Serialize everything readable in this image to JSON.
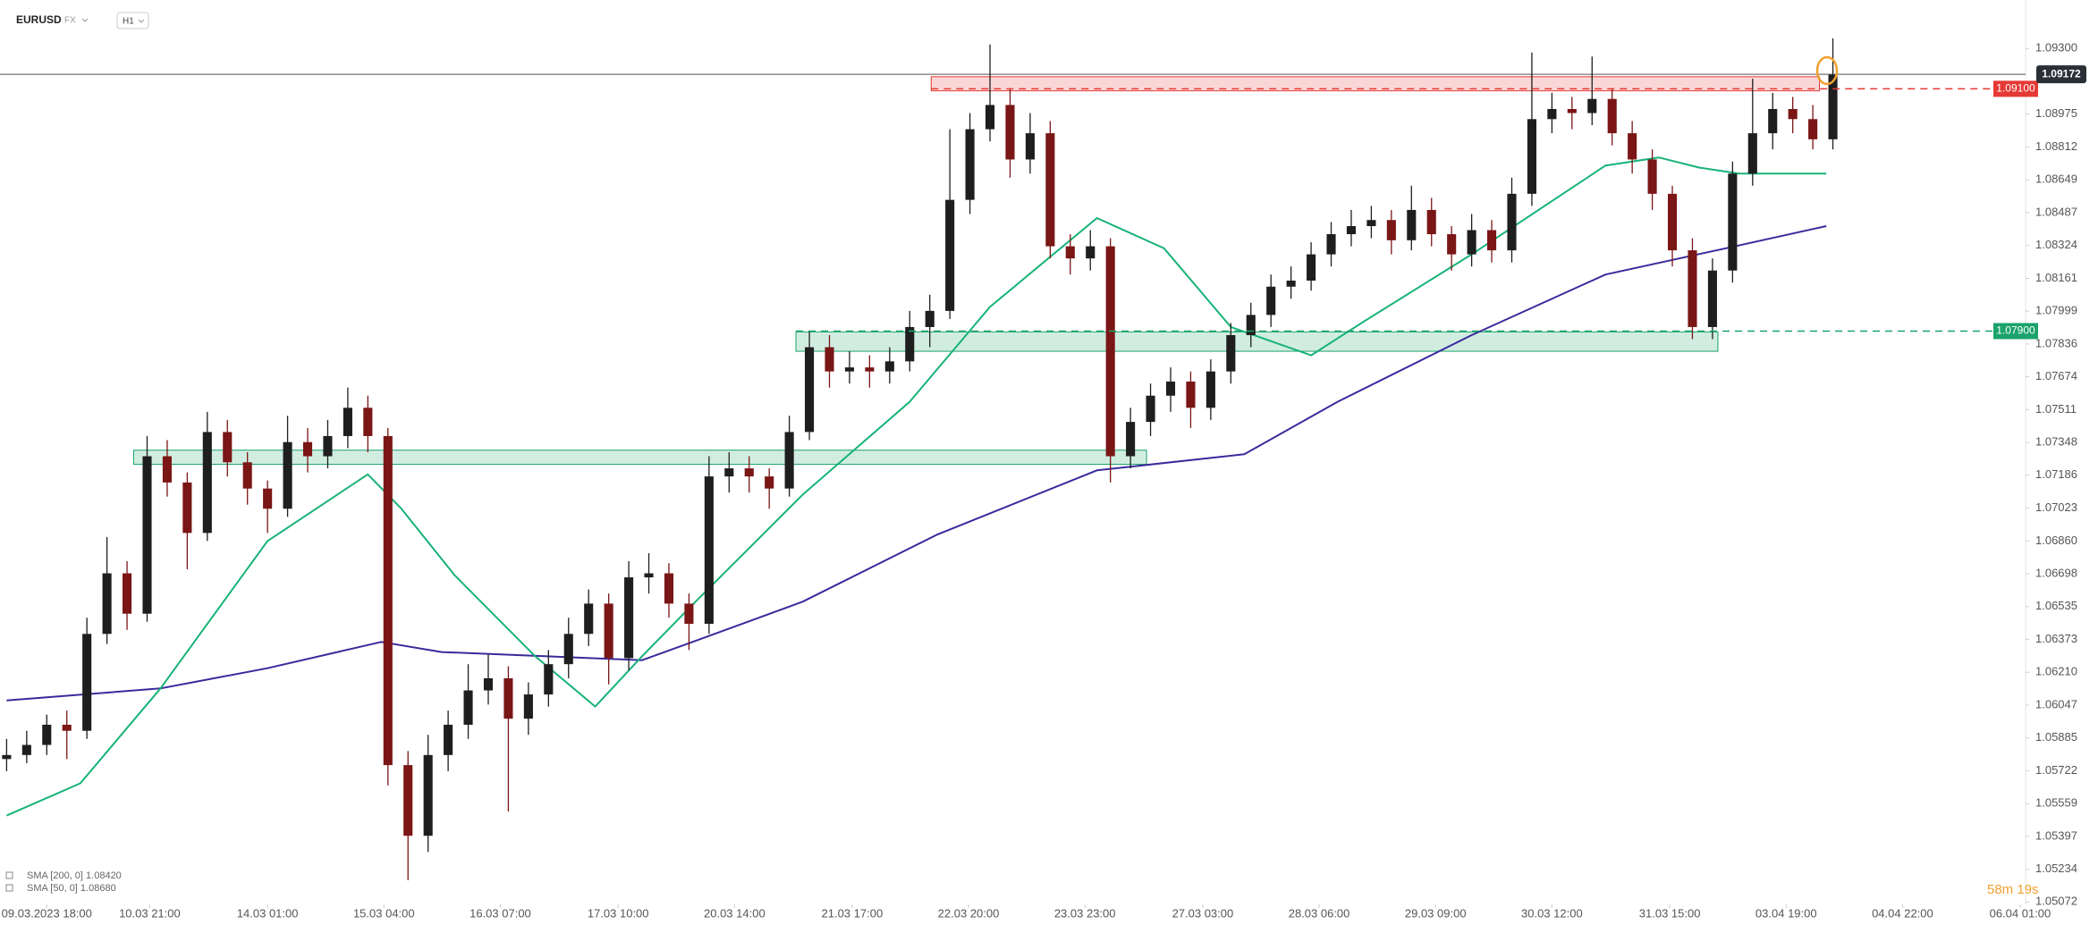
{
  "chart_data": {
    "type": "candlestick",
    "symbol": "EURUSD",
    "market": "FX",
    "timeframe": "H1",
    "countdown": "58m 19s",
    "up_color": "#1e1e1e",
    "down_color": "#7a1616",
    "xlim": [
      -0.33,
      100.6
    ],
    "ylim": [
      1.0506,
      1.0954
    ],
    "yticks": [
      {
        "value": 1.093,
        "label": "1.09300"
      },
      1.08975,
      1.08812,
      1.08649,
      1.08487,
      1.08324,
      1.08161,
      1.07999,
      1.07836,
      1.07674,
      1.07511,
      1.07348,
      1.07186,
      1.07023,
      {
        "value": 1.0686,
        "label": "1.06860"
      },
      1.06698,
      1.06535,
      1.06373,
      {
        "value": 1.0621,
        "label": "1.06210"
      },
      1.06047,
      1.05885,
      1.05722,
      1.05559,
      1.05397,
      1.05234,
      1.05072
    ],
    "xticks": [
      {
        "value": 2,
        "label": "09.03.2023  18:00"
      },
      {
        "value": 7.13,
        "label": "10.03  21:00"
      },
      {
        "value": 13,
        "label": "14.03  01:00"
      },
      {
        "value": 18.8,
        "label": "15.03  04:00"
      },
      {
        "value": 24.6,
        "label": "16.03  07:00"
      },
      {
        "value": 30.47,
        "label": "17.03  10:00"
      },
      {
        "value": 36.27,
        "label": "20.03  14:00"
      },
      {
        "value": 42.13,
        "label": "21.03  17:00"
      },
      {
        "value": 47.93,
        "label": "22.03  20:00"
      },
      {
        "value": 53.73,
        "label": "23.03  23:00"
      },
      {
        "value": 59.6,
        "label": "27.03  03:00"
      },
      {
        "value": 65.4,
        "label": "28.03  06:00"
      },
      {
        "value": 71.2,
        "label": "29.03  09:00"
      },
      {
        "value": 77,
        "label": "30.03  12:00"
      },
      {
        "value": 82.87,
        "label": "31.03  15:00"
      },
      {
        "value": 88.67,
        "label": "03.04  19:00"
      },
      {
        "value": 94.47,
        "label": "04.04  22:00"
      },
      {
        "value": 100.33,
        "label": "06.04  01:00"
      }
    ],
    "candles": [
      [
        1.0578,
        1.0588,
        1.0572,
        1.058
      ],
      [
        1.058,
        1.0592,
        1.0576,
        1.0585
      ],
      [
        1.0585,
        1.06,
        1.058,
        1.0595
      ],
      [
        1.0595,
        1.0602,
        1.0578,
        1.0592
      ],
      [
        1.0592,
        1.0648,
        1.0588,
        1.064
      ],
      [
        1.064,
        1.0688,
        1.0635,
        1.067
      ],
      [
        1.067,
        1.0676,
        1.0642,
        1.065
      ],
      [
        1.065,
        1.0738,
        1.0646,
        1.0728
      ],
      [
        1.0728,
        1.0736,
        1.0708,
        1.0715
      ],
      [
        1.0715,
        1.072,
        1.0672,
        1.069
      ],
      [
        1.069,
        1.075,
        1.0686,
        1.074
      ],
      [
        1.074,
        1.0746,
        1.0718,
        1.0725
      ],
      [
        1.0725,
        1.073,
        1.0704,
        1.0712
      ],
      [
        1.0712,
        1.0716,
        1.069,
        1.0702
      ],
      [
        1.0702,
        1.0748,
        1.0698,
        1.0735
      ],
      [
        1.0735,
        1.0742,
        1.072,
        1.0728
      ],
      [
        1.0728,
        1.0746,
        1.0722,
        1.0738
      ],
      [
        1.0738,
        1.0762,
        1.0732,
        1.0752
      ],
      [
        1.0752,
        1.0758,
        1.073,
        1.0738
      ],
      [
        1.0738,
        1.0742,
        1.0565,
        1.0575
      ],
      [
        1.0575,
        1.0582,
        1.0518,
        1.054
      ],
      [
        1.054,
        1.059,
        1.0532,
        1.058
      ],
      [
        1.058,
        1.0602,
        1.0572,
        1.0595
      ],
      [
        1.0595,
        1.0625,
        1.0588,
        1.0612
      ],
      [
        1.0612,
        1.063,
        1.0605,
        1.0618
      ],
      [
        1.0618,
        1.0624,
        1.0552,
        1.0598
      ],
      [
        1.0598,
        1.0616,
        1.059,
        1.061
      ],
      [
        1.061,
        1.0632,
        1.0604,
        1.0625
      ],
      [
        1.0625,
        1.0648,
        1.0618,
        1.064
      ],
      [
        1.064,
        1.0662,
        1.0634,
        1.0655
      ],
      [
        1.0655,
        1.066,
        1.0615,
        1.0628
      ],
      [
        1.0628,
        1.0676,
        1.0622,
        1.0668
      ],
      [
        1.0668,
        1.068,
        1.066,
        1.067
      ],
      [
        1.067,
        1.0675,
        1.0648,
        1.0655
      ],
      [
        1.0655,
        1.066,
        1.0632,
        1.0645
      ],
      [
        1.0645,
        1.0728,
        1.064,
        1.0718
      ],
      [
        1.0718,
        1.073,
        1.071,
        1.0722
      ],
      [
        1.0722,
        1.0728,
        1.071,
        1.0718
      ],
      [
        1.0718,
        1.0722,
        1.0702,
        1.0712
      ],
      [
        1.0712,
        1.0748,
        1.0708,
        1.074
      ],
      [
        1.074,
        1.079,
        1.0736,
        1.0782
      ],
      [
        1.0782,
        1.0788,
        1.0762,
        1.077
      ],
      [
        1.077,
        1.078,
        1.0764,
        1.0772
      ],
      [
        1.0772,
        1.0778,
        1.0762,
        1.077
      ],
      [
        1.077,
        1.0782,
        1.0764,
        1.0775
      ],
      [
        1.0775,
        1.08,
        1.077,
        1.0792
      ],
      [
        1.0792,
        1.0808,
        1.0782,
        1.08
      ],
      [
        1.08,
        1.089,
        1.0796,
        1.0855
      ],
      [
        1.0855,
        1.0898,
        1.0848,
        1.089
      ],
      [
        1.089,
        1.0932,
        1.0884,
        1.0902
      ],
      [
        1.0902,
        1.091,
        1.0866,
        1.0875
      ],
      [
        1.0875,
        1.0898,
        1.0868,
        1.0888
      ],
      [
        1.0888,
        1.0894,
        1.0826,
        1.0832
      ],
      [
        1.0832,
        1.0838,
        1.0818,
        1.0826
      ],
      [
        1.0826,
        1.084,
        1.082,
        1.0832
      ],
      [
        1.0832,
        1.0836,
        1.0715,
        1.0728
      ],
      [
        1.0728,
        1.0752,
        1.0722,
        1.0745
      ],
      [
        1.0745,
        1.0764,
        1.0738,
        1.0758
      ],
      [
        1.0758,
        1.0772,
        1.075,
        1.0765
      ],
      [
        1.0765,
        1.077,
        1.0742,
        1.0752
      ],
      [
        1.0752,
        1.0776,
        1.0746,
        1.077
      ],
      [
        1.077,
        1.0794,
        1.0764,
        1.0788
      ],
      [
        1.0788,
        1.0804,
        1.0782,
        1.0798
      ],
      [
        1.0798,
        1.0818,
        1.0792,
        1.0812
      ],
      [
        1.0812,
        1.0822,
        1.0806,
        1.0815
      ],
      [
        1.0815,
        1.0834,
        1.081,
        1.0828
      ],
      [
        1.0828,
        1.0844,
        1.0822,
        1.0838
      ],
      [
        1.0838,
        1.085,
        1.0832,
        1.0842
      ],
      [
        1.0842,
        1.0852,
        1.0836,
        1.0845
      ],
      [
        1.0845,
        1.085,
        1.0828,
        1.0835
      ],
      [
        1.0835,
        1.0862,
        1.083,
        1.085
      ],
      [
        1.085,
        1.0856,
        1.0832,
        1.0838
      ],
      [
        1.0838,
        1.0842,
        1.082,
        1.0828
      ],
      [
        1.0828,
        1.0848,
        1.0822,
        1.084
      ],
      [
        1.084,
        1.0845,
        1.0824,
        1.083
      ],
      [
        1.083,
        1.0866,
        1.0824,
        1.0858
      ],
      [
        1.0858,
        1.0928,
        1.0852,
        1.0895
      ],
      [
        1.0895,
        1.0908,
        1.0888,
        1.09
      ],
      [
        1.09,
        1.0906,
        1.089,
        1.0898
      ],
      [
        1.0898,
        1.0926,
        1.0892,
        1.0905
      ],
      [
        1.0905,
        1.091,
        1.0882,
        1.0888
      ],
      [
        1.0888,
        1.0894,
        1.0868,
        1.0875
      ],
      [
        1.0875,
        1.088,
        1.085,
        1.0858
      ],
      [
        1.0858,
        1.0862,
        1.0822,
        1.083
      ],
      [
        1.083,
        1.0836,
        1.0786,
        1.0792
      ],
      [
        1.0792,
        1.0826,
        1.0786,
        1.082
      ],
      [
        1.082,
        1.0874,
        1.0814,
        1.0868
      ],
      [
        1.0868,
        1.0915,
        1.0862,
        1.0888
      ],
      [
        1.0888,
        1.0908,
        1.088,
        1.09
      ],
      [
        1.09,
        1.0906,
        1.0888,
        1.0895
      ],
      [
        1.0895,
        1.0902,
        1.088,
        1.0885
      ],
      [
        1.0885,
        1.0935,
        1.088,
        1.0917
      ]
    ],
    "series": [
      {
        "name": "SMA [200, 0] 1.08420",
        "color": "#3a2a9c",
        "x": [
          0,
          7.67,
          13,
          18.67,
          21.67,
          31.67,
          35,
          39.67,
          46.33,
          54.33,
          61.67,
          66.33,
          73,
          79.67,
          85.67,
          90.67
        ],
        "values": [
          1.0607,
          1.0613,
          1.0623,
          1.0636,
          1.0631,
          1.0627,
          1.0639,
          1.0656,
          1.0689,
          1.0721,
          1.0729,
          1.0755,
          1.0788,
          1.0818,
          1.0831,
          1.0842
        ]
      },
      {
        "name": "SMA [50, 0] 1.08680",
        "color": "#17b377",
        "x": [
          0,
          3.67,
          7.67,
          13,
          18,
          19.67,
          22.33,
          26.33,
          29.33,
          31.67,
          34.33,
          39.67,
          45,
          49,
          54.33,
          57.67,
          61,
          65,
          67.67,
          73,
          79.67,
          82.33,
          84.33,
          86.33,
          90.67
        ],
        "values": [
          1.055,
          1.0566,
          1.0613,
          1.0686,
          1.0719,
          1.0702,
          1.0669,
          1.0629,
          1.0604,
          1.0629,
          1.0656,
          1.0709,
          1.0755,
          1.0802,
          1.0846,
          1.0831,
          1.0792,
          1.0778,
          1.0795,
          1.0828,
          1.0872,
          1.0876,
          1.0871,
          1.0868,
          1.0868
        ]
      }
    ],
    "zones": [
      {
        "from": 46.07,
        "to": 90.33,
        "low": 1.0909,
        "high": 1.0916,
        "color": "#e53935"
      },
      {
        "from": 39.33,
        "to": 85.27,
        "low": 1.078,
        "high": 1.07896,
        "color": "#1aa36a"
      },
      {
        "from": 6.33,
        "to": 56.8,
        "low": 1.0724,
        "high": 1.0731,
        "color": "#1aa36a"
      }
    ],
    "levels": [
      {
        "from": 46.07,
        "value": 1.091,
        "label": "1.09100",
        "color": "#e53935"
      },
      {
        "from": 39.33,
        "value": 1.079,
        "label": "1.07900",
        "color": "#1aa36a"
      }
    ],
    "last_price": 1.09172
  }
}
